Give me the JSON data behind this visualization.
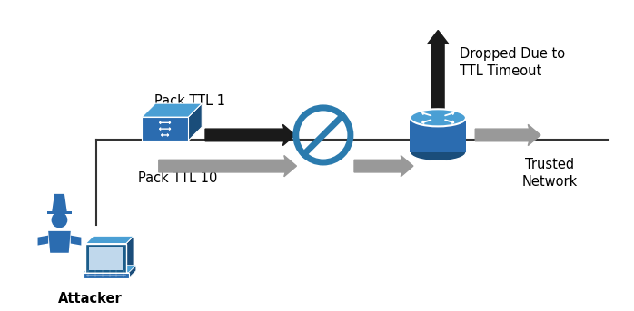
{
  "bg_color": "#ffffff",
  "blue_color": "#2B6CB0",
  "blue_light": "#4a9fd4",
  "blue_dark": "#1a4d7a",
  "blue_router_top": "#3a8fc4",
  "black": "#1a1a1a",
  "gray_arrow": "#999999",
  "no_sign_color": "#2B7BAE",
  "line_color": "#333333",
  "labels": {
    "pack_ttl1": "Pack TTL 1",
    "pack_ttl10": "Pack TTL 10",
    "dropped": "Dropped Due to\nTTL Timeout",
    "trusted": "Trusted\nNetwork",
    "attacker": "Attacker"
  },
  "figsize": [
    6.98,
    3.43
  ],
  "dpi": 100
}
